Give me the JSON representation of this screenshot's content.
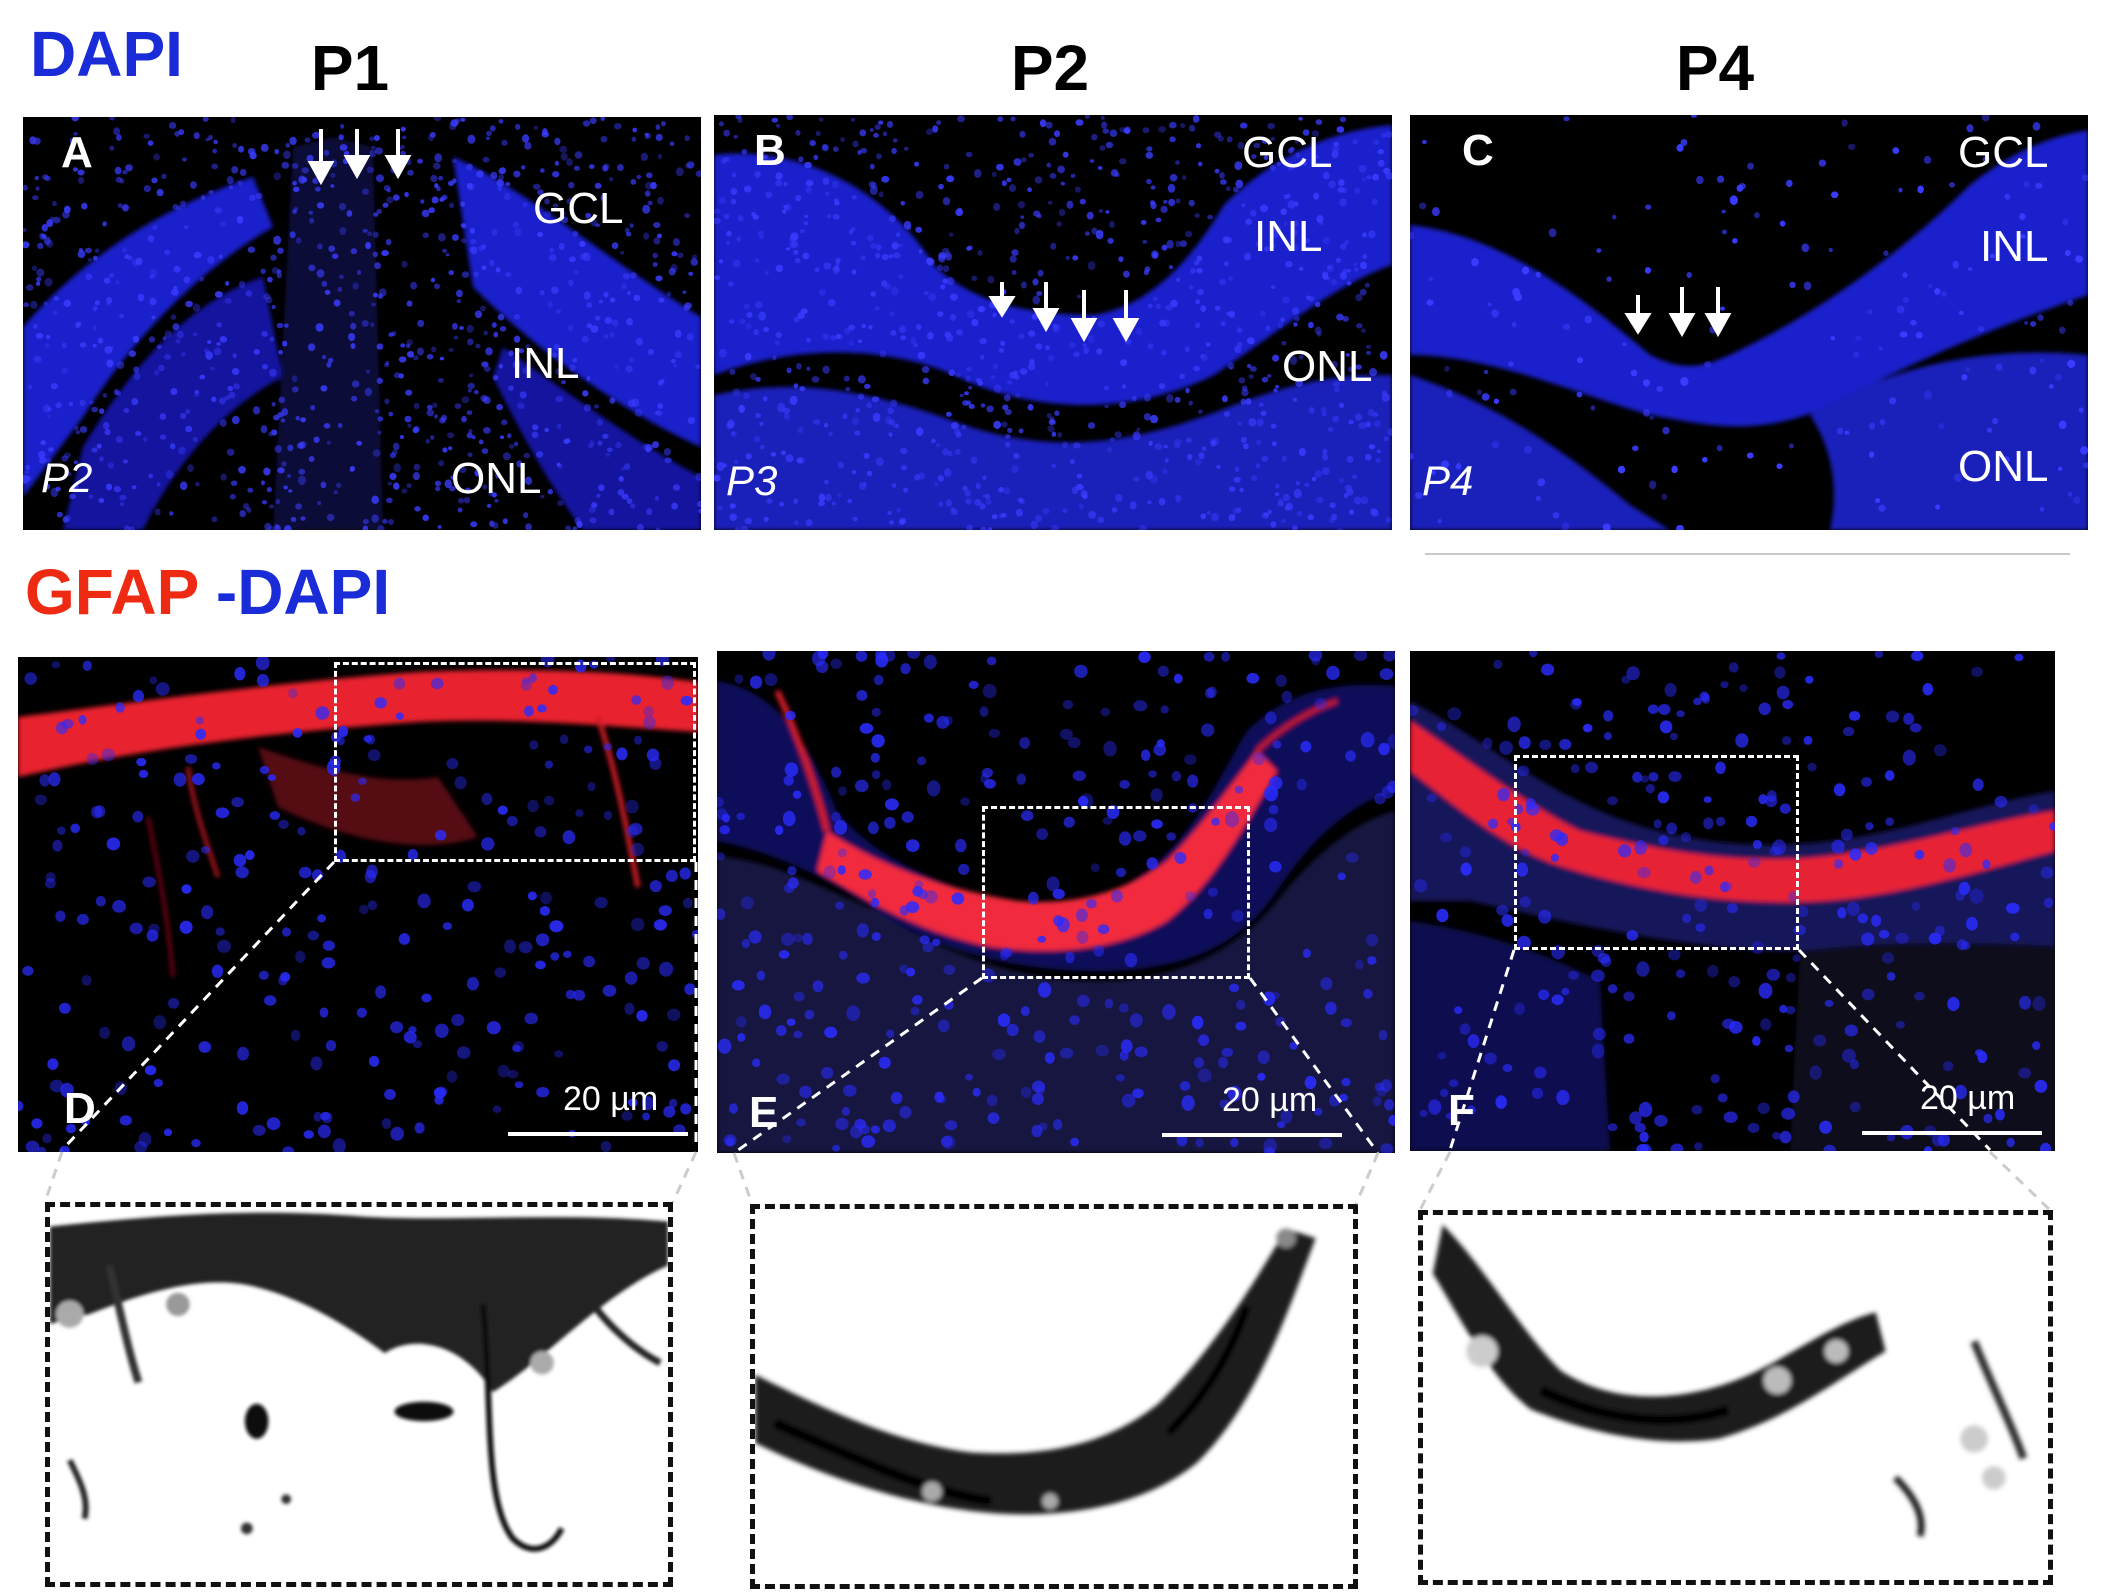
{
  "labels": {
    "dapi_section": "DAPI",
    "gfap": "GFAP",
    "gfap_dapi_suffix": "-DAPI"
  },
  "columns": [
    "P1",
    "P2",
    "P4"
  ],
  "top_panels": [
    {
      "letter": "A",
      "age": "P2",
      "layers": [
        "GCL",
        "INL",
        "ONL"
      ]
    },
    {
      "letter": "B",
      "age": "P3",
      "layers": [
        "GCL",
        "INL",
        "ONL"
      ]
    },
    {
      "letter": "C",
      "age": "P4",
      "layers": [
        "GCL",
        "INL",
        "ONL"
      ]
    }
  ],
  "bottom_panels": [
    {
      "letter": "D",
      "scale": "20 µm"
    },
    {
      "letter": "E",
      "scale": "20 µm"
    },
    {
      "letter": "F",
      "scale": "20 µm"
    }
  ],
  "colors": {
    "dapi_blue": "#1a2bd8",
    "gfap_red": "#ee2a12",
    "nuclei": "#2a2cff",
    "gfap_signal": "#ff1f2f"
  }
}
